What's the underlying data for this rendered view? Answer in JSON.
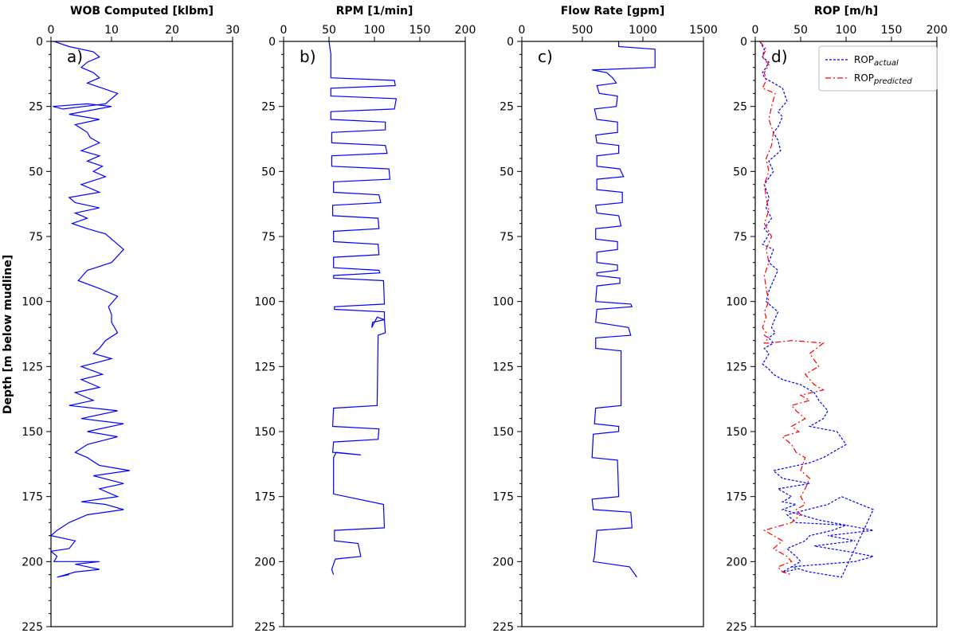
{
  "figure": {
    "ylabel": "Depth [m below mudline]"
  },
  "chart_data": [
    {
      "type": "line",
      "panel_letter": "a)",
      "title": "WOB Computed [klbm]",
      "xlim": [
        0,
        30
      ],
      "ylim": [
        225,
        0
      ],
      "x_ticks": [
        0,
        10,
        20,
        30
      ],
      "y_ticks": [
        0,
        25,
        50,
        75,
        100,
        125,
        150,
        175,
        200,
        225
      ],
      "y_axis_inverted": true,
      "series": [
        {
          "color": "#0000ff",
          "dash": "solid",
          "x": [
            0.5,
            3,
            7,
            8,
            6,
            5,
            7,
            8,
            6,
            11,
            9,
            2,
            0.3,
            6,
            10,
            3,
            8,
            4,
            6,
            6.5,
            8,
            5,
            8,
            6,
            8.5,
            7,
            9,
            5,
            8,
            3,
            4,
            8,
            4,
            6,
            3.5,
            6,
            9,
            12,
            10,
            6,
            4.5,
            8,
            11,
            9.5,
            10,
            10,
            11,
            9,
            8,
            7,
            10,
            5,
            8.5,
            5,
            8,
            4,
            7,
            3,
            11,
            5,
            12,
            6,
            11,
            6,
            4,
            6,
            8,
            13,
            7,
            12,
            8,
            11,
            5,
            9,
            12,
            6,
            3,
            1,
            0,
            4,
            3,
            0,
            1,
            0.5,
            8,
            4,
            8,
            4,
            1,
            3
          ],
          "y": [
            0,
            2,
            4,
            6,
            8,
            10,
            12,
            14,
            16,
            20,
            24,
            26,
            25,
            24,
            25,
            28,
            30,
            32,
            35,
            37,
            39,
            42,
            44,
            46,
            48,
            50,
            52,
            55,
            58,
            60,
            62,
            64,
            66,
            68,
            70,
            72,
            74,
            80,
            85,
            88,
            92,
            95,
            98,
            102,
            105,
            108,
            112,
            115,
            118,
            120,
            122,
            125,
            128,
            130,
            133,
            135,
            138,
            140,
            142,
            145,
            147,
            150,
            152,
            155,
            158,
            160,
            163,
            165,
            167,
            170,
            172,
            175,
            177,
            178,
            180,
            182,
            185,
            188,
            190,
            192,
            195,
            196,
            198,
            200,
            200,
            201,
            203,
            204,
            206,
            205
          ]
        }
      ]
    },
    {
      "type": "line",
      "panel_letter": "b)",
      "title": "RPM [1/min]",
      "xlim": [
        0,
        200
      ],
      "ylim": [
        225,
        0
      ],
      "x_ticks": [
        0,
        50,
        100,
        150,
        200
      ],
      "y_ticks": [
        0,
        25,
        50,
        75,
        100,
        125,
        150,
        175,
        200,
        225
      ],
      "y_axis_inverted": true,
      "series": [
        {
          "color": "#0000ff",
          "dash": "solid",
          "x": [
            50,
            52,
            52,
            122,
            123,
            52,
            52,
            124,
            122,
            52,
            52,
            112,
            112,
            53,
            53,
            112,
            114,
            53,
            53,
            116,
            117,
            55,
            55,
            105,
            107,
            54,
            54,
            104,
            105,
            55,
            55,
            104,
            105,
            55,
            55,
            105,
            106,
            55,
            55,
            110,
            111,
            56,
            56,
            111,
            111,
            98,
            97,
            100,
            103,
            111,
            112,
            104,
            103,
            55,
            54,
            105,
            104,
            55,
            54,
            85,
            58,
            55,
            55,
            110,
            111,
            56,
            56,
            82,
            85,
            57,
            56,
            53,
            55
          ],
          "y": [
            0,
            5,
            14,
            15,
            17,
            18,
            21,
            22,
            26,
            27,
            30,
            31,
            34,
            35,
            39,
            40,
            43,
            44,
            48,
            49,
            53,
            54,
            58,
            59,
            62,
            63,
            67,
            68,
            72,
            73,
            77,
            78,
            82,
            83,
            87,
            88,
            89,
            90,
            91,
            92,
            101,
            102,
            103,
            104,
            107,
            108,
            110,
            108,
            106,
            107,
            112,
            113,
            140,
            141,
            148,
            149,
            153,
            154,
            158,
            159,
            158,
            160,
            174,
            178,
            187,
            188,
            192,
            193,
            198,
            199,
            200,
            203,
            205
          ]
        }
      ]
    },
    {
      "type": "line",
      "panel_letter": "c)",
      "title": "Flow Rate [gpm]",
      "xlim": [
        0,
        1500
      ],
      "ylim": [
        225,
        0
      ],
      "x_ticks": [
        0,
        500,
        1000,
        1500
      ],
      "y_ticks": [
        0,
        25,
        50,
        75,
        100,
        125,
        150,
        175,
        200,
        225
      ],
      "y_axis_inverted": true,
      "series": [
        {
          "color": "#0000ff",
          "dash": "solid",
          "x": [
            800,
            800,
            1100,
            1100,
            580,
            700,
            750,
            780,
            620,
            640,
            790,
            780,
            600,
            620,
            790,
            790,
            610,
            620,
            800,
            800,
            620,
            620,
            810,
            840,
            620,
            620,
            830,
            830,
            610,
            620,
            800,
            820,
            610,
            610,
            790,
            790,
            620,
            620,
            790,
            790,
            620,
            620,
            810,
            810,
            620,
            610,
            900,
            910,
            620,
            610,
            880,
            900,
            610,
            610,
            820,
            820,
            610,
            600,
            800,
            800,
            590,
            580,
            790,
            800,
            580,
            590,
            900,
            910,
            620,
            600,
            590,
            890,
            950
          ],
          "y": [
            0,
            2,
            3,
            10,
            11,
            12,
            14,
            16,
            17,
            20,
            21,
            25,
            26,
            30,
            31,
            35,
            36,
            39,
            40,
            43,
            44,
            48,
            49,
            52,
            53,
            57,
            58,
            62,
            63,
            66,
            67,
            71,
            72,
            76,
            77,
            80,
            81,
            85,
            86,
            88,
            89,
            90,
            91,
            93,
            94,
            100,
            101,
            102,
            103,
            108,
            110,
            113,
            114,
            118,
            119,
            140,
            141,
            147,
            148,
            150,
            151,
            160,
            161,
            175,
            176,
            180,
            181,
            187,
            188,
            198,
            200,
            202,
            206
          ]
        }
      ]
    },
    {
      "type": "line",
      "panel_letter": "d)",
      "title": "ROP [m/h]",
      "xlim": [
        0,
        200
      ],
      "ylim": [
        225,
        0
      ],
      "x_ticks": [
        0,
        50,
        100,
        150,
        200
      ],
      "y_ticks": [
        0,
        25,
        50,
        75,
        100,
        125,
        150,
        175,
        200,
        225
      ],
      "y_axis_inverted": true,
      "legend": {
        "position": "upper right"
      },
      "series": [
        {
          "name": "ROP",
          "name_sub": "actual",
          "color": "#0000ff",
          "dash": "dotted",
          "x": [
            5,
            10,
            8,
            15,
            12,
            8,
            10,
            30,
            35,
            30,
            25,
            30,
            25,
            20,
            25,
            28,
            15,
            20,
            10,
            15,
            12,
            18,
            10,
            15,
            12,
            8,
            20,
            15,
            25,
            20,
            15,
            12,
            25,
            20,
            18,
            22,
            15,
            20,
            10,
            15,
            12,
            8,
            15,
            20,
            30,
            50,
            65,
            70,
            80,
            75,
            60,
            90,
            100,
            75,
            60,
            20,
            30,
            60,
            25,
            40,
            30,
            45,
            30,
            50,
            70,
            100,
            130,
            80,
            110,
            65,
            100,
            130,
            110,
            40,
            60,
            95,
            130,
            95,
            80,
            35,
            45,
            100,
            85,
            60,
            55,
            35,
            45,
            50,
            30,
            45
          ],
          "y": [
            0,
            3,
            6,
            8,
            10,
            12,
            14,
            18,
            23,
            25,
            27,
            29,
            33,
            35,
            38,
            42,
            46,
            50,
            55,
            60,
            64,
            68,
            72,
            74,
            76,
            78,
            80,
            85,
            88,
            92,
            96,
            100,
            104,
            108,
            110,
            112,
            114,
            116,
            118,
            120,
            122,
            124,
            126,
            128,
            130,
            132,
            135,
            138,
            142,
            145,
            148,
            150,
            155,
            160,
            162,
            165,
            168,
            170,
            172,
            175,
            177,
            178,
            180,
            182,
            184,
            186,
            188,
            190,
            192,
            194,
            196,
            198,
            200,
            202,
            204,
            206,
            180,
            175,
            178,
            182,
            185,
            186,
            188,
            190,
            192,
            195,
            198,
            200,
            204,
            203
          ]
        },
        {
          "name": "ROP",
          "name_sub": "predicted",
          "color": "#ff0000",
          "dash": "dashdot",
          "x": [
            5,
            12,
            8,
            15,
            10,
            12,
            8,
            22,
            18,
            15,
            20,
            18,
            12,
            15,
            10,
            12,
            15,
            10,
            18,
            12,
            15,
            10,
            12,
            15,
            10,
            12,
            10,
            8,
            12,
            10,
            15,
            12,
            10,
            15,
            40,
            75,
            60,
            70,
            55,
            65,
            75,
            50,
            60,
            40,
            45,
            55,
            40,
            48,
            30,
            40,
            45,
            55,
            50,
            60,
            55,
            50,
            55,
            45,
            50,
            40,
            10,
            20,
            30,
            20,
            35,
            40,
            25,
            30,
            40
          ],
          "y": [
            0,
            3,
            6,
            9,
            12,
            15,
            18,
            20,
            25,
            30,
            35,
            40,
            45,
            50,
            55,
            60,
            65,
            70,
            75,
            80,
            85,
            90,
            95,
            100,
            104,
            106,
            108,
            110,
            112,
            113,
            114,
            115,
            116,
            116,
            115,
            116,
            120,
            125,
            128,
            132,
            134,
            136,
            138,
            140,
            142,
            145,
            148,
            150,
            152,
            155,
            158,
            160,
            165,
            168,
            172,
            175,
            178,
            180,
            182,
            185,
            188,
            190,
            192,
            195,
            198,
            200,
            202,
            204,
            205
          ]
        }
      ]
    }
  ]
}
